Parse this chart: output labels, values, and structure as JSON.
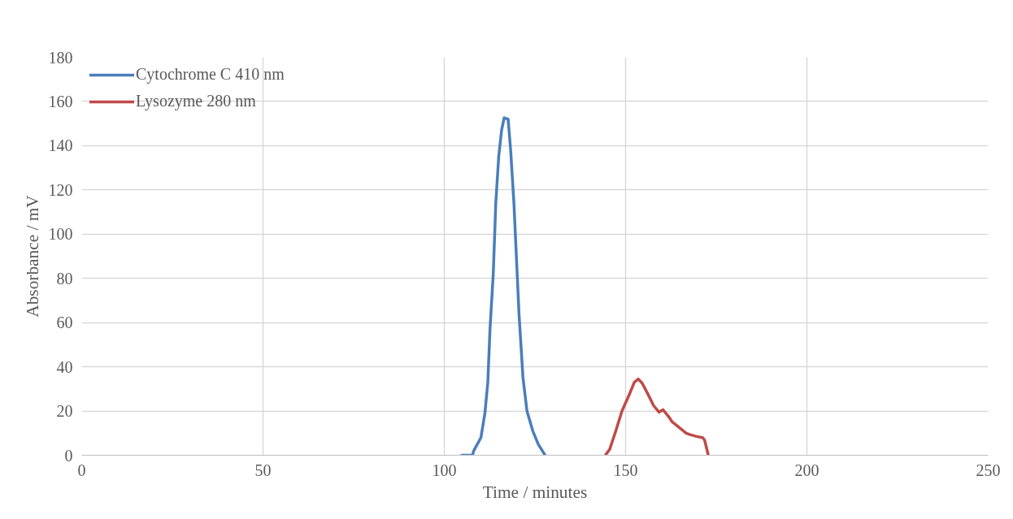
{
  "chart_data": {
    "type": "line",
    "xlabel": "Time / minutes",
    "ylabel": "Absorbance / mV",
    "xlim": [
      0,
      250
    ],
    "xticks": [
      0,
      50,
      100,
      150,
      200,
      250
    ],
    "ylim": [
      0,
      180
    ],
    "yticks": [
      0,
      20,
      40,
      60,
      80,
      100,
      120,
      140,
      160,
      180
    ],
    "grid": true,
    "legend": "top left",
    "line_style": "solid",
    "series": [
      {
        "name": "Cytochrome C 410 nm",
        "color": "#4a7ebb",
        "x": [
          104.8,
          107.8,
          108.1,
          110.1,
          111.2,
          112.0,
          112.6,
          113.5,
          114.2,
          115.0,
          115.8,
          116.5,
          117.6,
          118.3,
          119.2,
          119.9,
          120.6,
          121.7,
          122.8,
          124.4,
          125.9,
          127.8
        ],
        "values": [
          0,
          0,
          2,
          8,
          19,
          33,
          57,
          82,
          114,
          135,
          147,
          152.6,
          152,
          138,
          114,
          89,
          64,
          35,
          20,
          11,
          5,
          0
        ]
      },
      {
        "name": "Lysozyme 280 nm",
        "color": "#be4b48",
        "x": [
          144.4,
          145.6,
          147.1,
          149.0,
          150.9,
          152.4,
          153.5,
          154.6,
          156.2,
          157.7,
          159.2,
          160.3,
          161.8,
          162.9,
          164.8,
          166.7,
          167.8,
          169.4,
          171.3,
          171.8,
          172.8
        ],
        "values": [
          0,
          2.6,
          10,
          20,
          27,
          33,
          34.5,
          32.5,
          27.5,
          22.5,
          19.5,
          20.6,
          17.6,
          15,
          12.5,
          10,
          9.3,
          8.6,
          7.9,
          6.8,
          0
        ]
      }
    ]
  }
}
